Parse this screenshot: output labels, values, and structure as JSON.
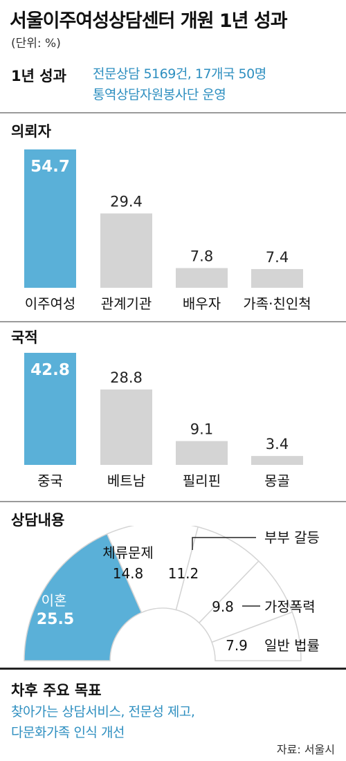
{
  "title": "서울이주여성상담센터 개원 1년 성과",
  "unit": "(단위: %)",
  "summary": {
    "label": "1년 성과",
    "line1": "전문상담 5169건, 17개국 50명",
    "line2": "통역상담자원봉사단 운영"
  },
  "colors": {
    "highlight": "#5ab0d8",
    "bar": "#d4d4d4",
    "accent_text": "#2e8fc0"
  },
  "chart_data": [
    {
      "type": "bar",
      "title": "의뢰자",
      "categories": [
        "이주여성",
        "관계기관",
        "배우자",
        "가족·친인척"
      ],
      "values": [
        54.7,
        29.4,
        7.8,
        7.4
      ],
      "value_labels": [
        "54.7",
        "29.4",
        "7.8",
        "7.4"
      ],
      "highlight_index": 0,
      "ylim": [
        0,
        54.7
      ]
    },
    {
      "type": "bar",
      "title": "국적",
      "categories": [
        "중국",
        "베트남",
        "필리핀",
        "몽골"
      ],
      "values": [
        42.8,
        28.8,
        9.1,
        3.4
      ],
      "value_labels": [
        "42.8",
        "28.8",
        "9.1",
        "3.4"
      ],
      "highlight_index": 0,
      "ylim": [
        0,
        42.8
      ]
    },
    {
      "type": "pie",
      "title": "상담내용",
      "categories": [
        "이혼",
        "체류문제",
        "부부 갈등",
        "가정폭력",
        "일반 법률"
      ],
      "values": [
        25.5,
        14.8,
        11.2,
        9.8,
        7.9
      ],
      "value_labels": [
        "25.5",
        "14.8",
        "11.2",
        "9.8",
        "7.9"
      ],
      "highlight_index": 0
    }
  ],
  "goals": {
    "label": "차후 주요 목표",
    "line1": "찾아가는 상담서비스, 전문성 제고,",
    "line2": "다문화가족 인식 개선"
  },
  "source": "자료: 서울시"
}
